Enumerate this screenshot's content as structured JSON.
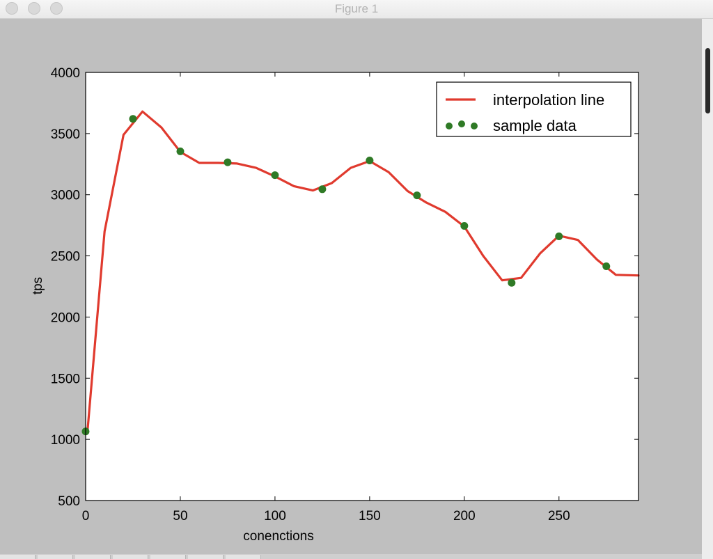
{
  "window": {
    "title": "Figure 1"
  },
  "chart_data": {
    "type": "line",
    "xlabel": "conenctions",
    "ylabel": "tps",
    "xlim": [
      0,
      292
    ],
    "ylim": [
      500,
      4000
    ],
    "xticks": [
      0,
      50,
      100,
      150,
      200,
      250
    ],
    "yticks": [
      500,
      1000,
      1500,
      2000,
      2500,
      3000,
      3500,
      4000
    ],
    "legend_position": "top-right",
    "series": [
      {
        "name": "interpolation line",
        "kind": "line",
        "color": "#e03a2e",
        "x": [
          1,
          10,
          20,
          30,
          40,
          50,
          60,
          70,
          80,
          90,
          100,
          110,
          120,
          130,
          140,
          150,
          160,
          170,
          180,
          190,
          200,
          210,
          220,
          230,
          240,
          250,
          260,
          270,
          280,
          292
        ],
        "y": [
          1070,
          2700,
          3490,
          3680,
          3550,
          3350,
          3260,
          3260,
          3255,
          3220,
          3150,
          3070,
          3035,
          3095,
          3220,
          3275,
          3185,
          3030,
          2935,
          2860,
          2740,
          2500,
          2300,
          2320,
          2520,
          2665,
          2630,
          2470,
          2345,
          2340
        ]
      },
      {
        "name": "sample data",
        "kind": "scatter",
        "color": "#2f7a26",
        "x": [
          0,
          25,
          50,
          75,
          100,
          125,
          150,
          175,
          200,
          225,
          250,
          275
        ],
        "y": [
          1065,
          3620,
          3355,
          3265,
          3160,
          3045,
          3280,
          2995,
          2745,
          2280,
          2660,
          2415
        ]
      }
    ]
  }
}
